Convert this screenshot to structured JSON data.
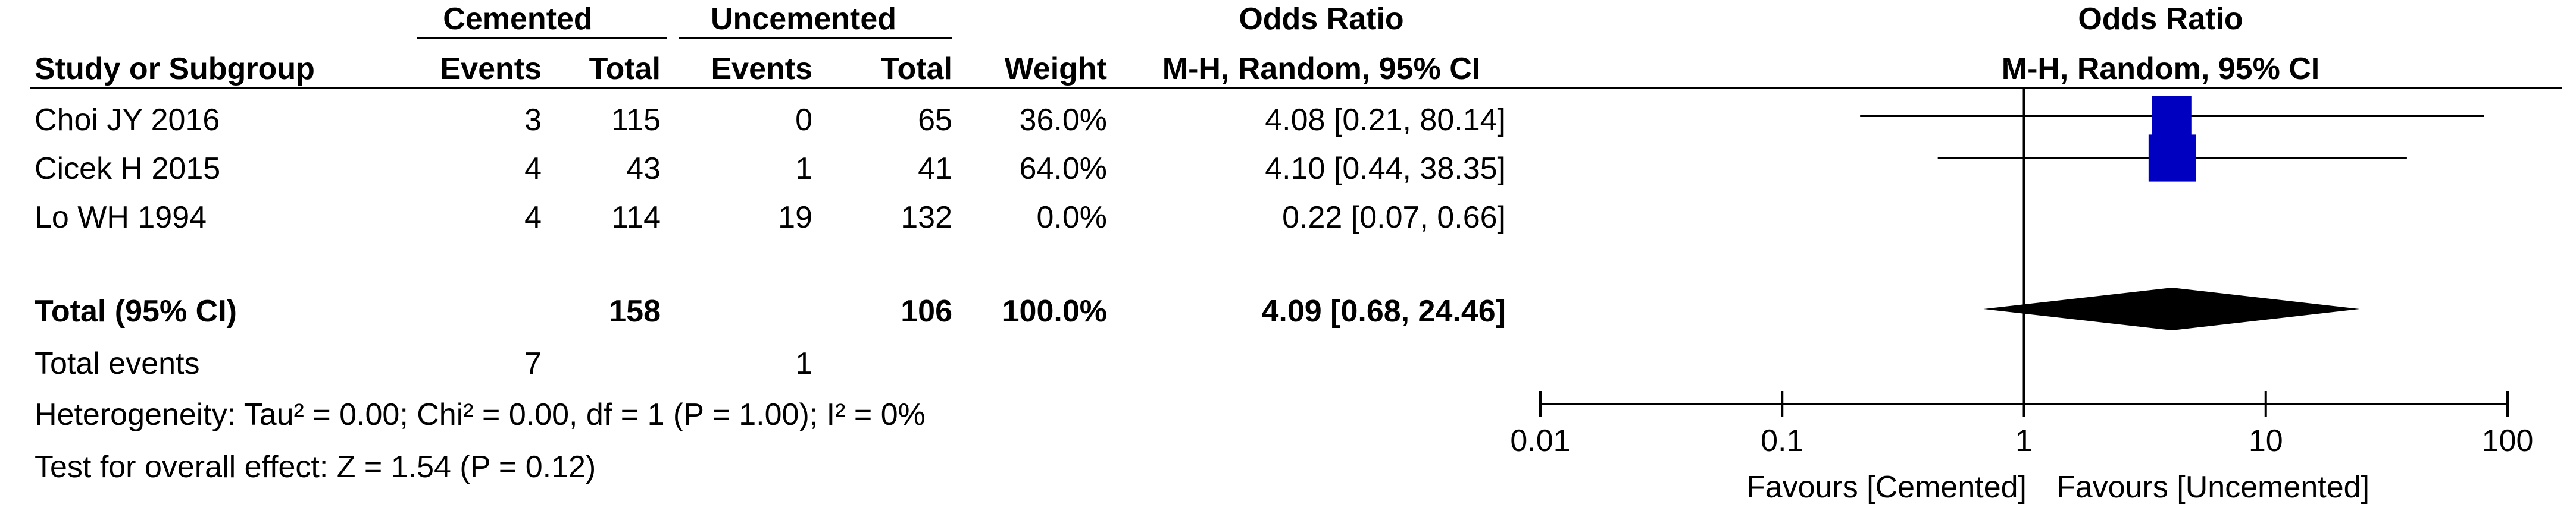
{
  "headers": {
    "group1": "Cemented",
    "group2": "Uncemented",
    "or_title": "Odds Ratio",
    "study_col": "Study or Subgroup",
    "events": "Events",
    "total": "Total",
    "weight": "Weight",
    "method": "M-H, Random, 95% CI",
    "plot_title": "Odds Ratio",
    "plot_method": "M-H, Random, 95% CI"
  },
  "studies": [
    {
      "name": "Choi JY 2016",
      "e1": "3",
      "t1": "115",
      "e2": "0",
      "t2": "65",
      "weight": "36.0%",
      "ci": "4.08 [0.21, 80.14]"
    },
    {
      "name": "Cicek H 2015",
      "e1": "4",
      "t1": "43",
      "e2": "1",
      "t2": "41",
      "weight": "64.0%",
      "ci": "4.10 [0.44, 38.35]"
    },
    {
      "name": "Lo WH 1994",
      "e1": "4",
      "t1": "114",
      "e2": "19",
      "t2": "132",
      "weight": "0.0%",
      "ci": "0.22 [0.07, 0.66]"
    }
  ],
  "total": {
    "label": "Total (95% CI)",
    "t1": "158",
    "t2": "106",
    "weight": "100.0%",
    "ci": "4.09 [0.68, 24.46]"
  },
  "events_row": {
    "label": "Total events",
    "e1": "7",
    "e2": "1"
  },
  "heterogeneity": "Heterogeneity: Tau² = 0.00; Chi² = 0.00, df = 1 (P = 1.00); I² = 0%",
  "overall_effect": "Test for overall effect: Z = 1.54 (P = 0.12)",
  "axis": {
    "ticks": [
      "0.01",
      "0.1",
      "1",
      "10",
      "100"
    ],
    "favours_left": "Favours [Cemented]",
    "favours_right": "Favours [Uncemented]"
  },
  "chart_data": {
    "type": "forest",
    "scale": "log",
    "xlim": [
      0.01,
      100
    ],
    "null_value": 1,
    "tick_values": [
      0.01,
      0.1,
      1,
      10,
      100
    ],
    "studies": [
      {
        "name": "Choi JY 2016",
        "or": 4.08,
        "lower": 0.21,
        "upper": 80.14,
        "weight": 36.0
      },
      {
        "name": "Cicek H 2015",
        "or": 4.1,
        "lower": 0.44,
        "upper": 38.35,
        "weight": 64.0
      },
      {
        "name": "Lo WH 1994",
        "or": 0.22,
        "lower": 0.07,
        "upper": 0.66,
        "weight": 0.0
      }
    ],
    "pooled": {
      "or": 4.09,
      "lower": 0.68,
      "upper": 24.46
    },
    "marker_color": "#0000c0"
  }
}
